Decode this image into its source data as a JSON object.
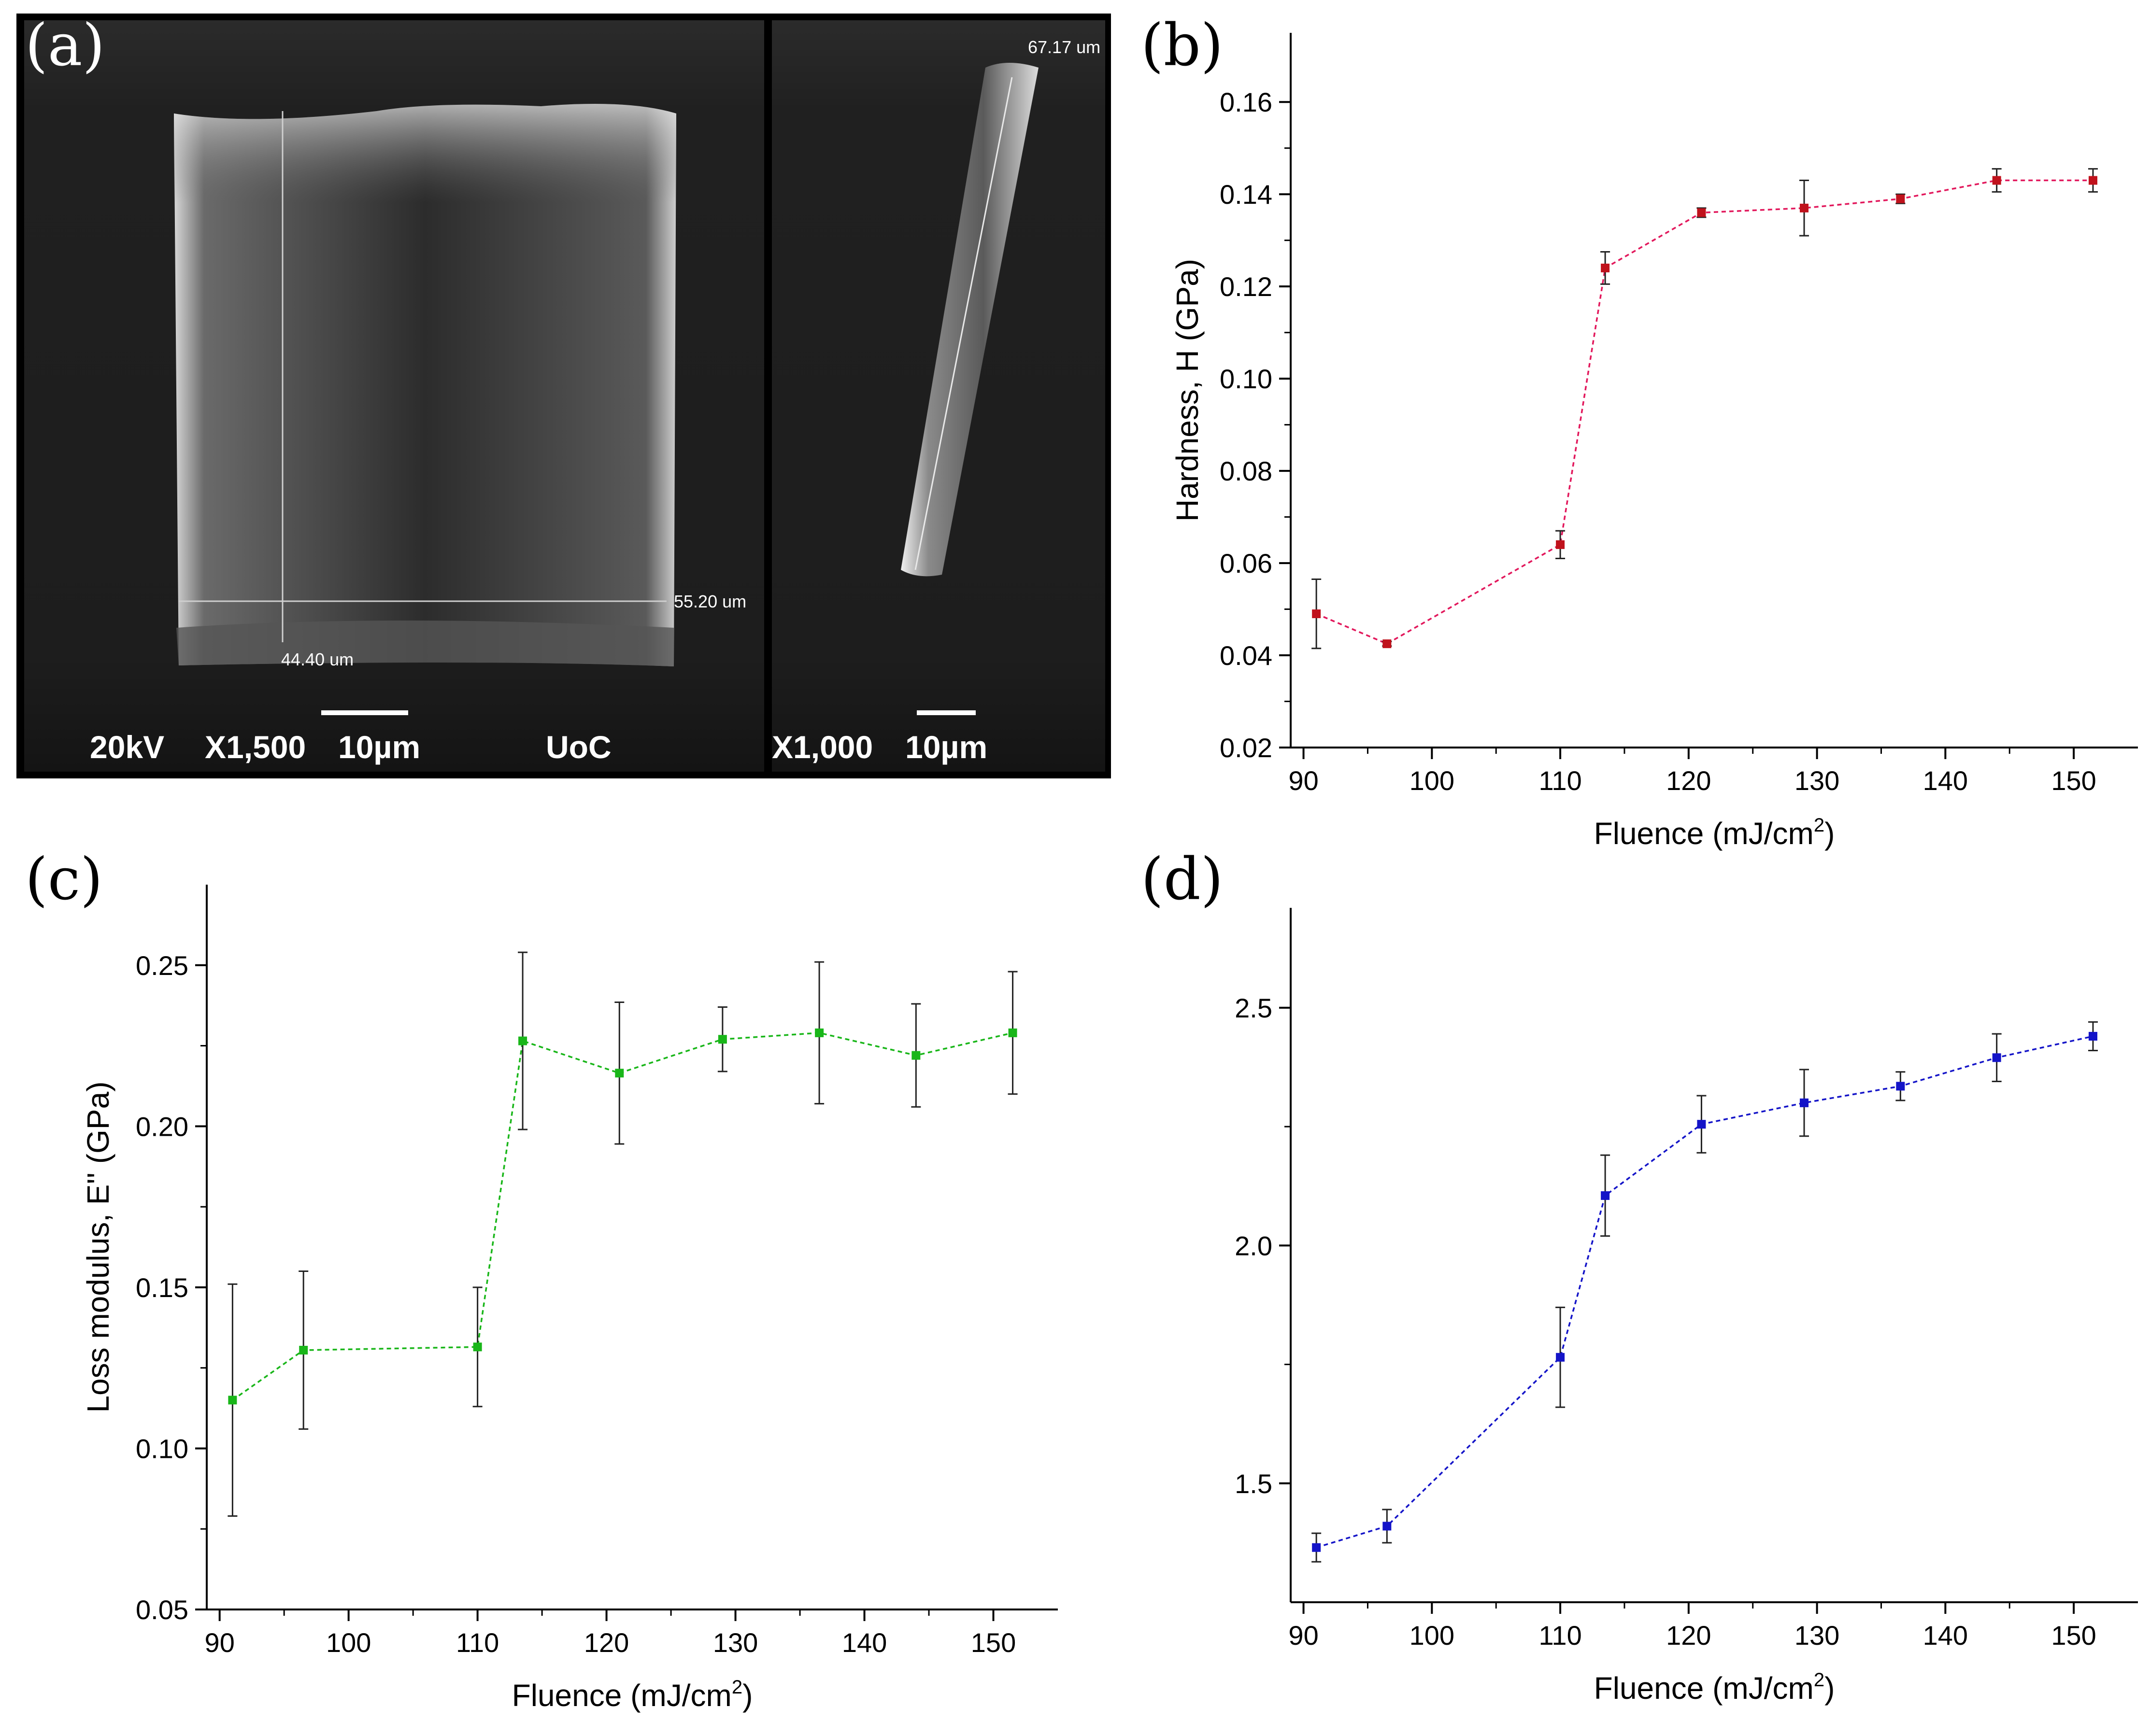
{
  "panel_labels": [
    "(a)",
    "(b)",
    "(c)",
    "(d)"
  ],
  "sem": {
    "left": {
      "kv": "20kV",
      "mag": "X1,500",
      "scale": "10µm",
      "inst": "UoC",
      "meas_w": "44.40 um",
      "meas_h": "55.20 um"
    },
    "right": {
      "mag": "X1,000",
      "scale": "10µm",
      "meas_l": "67.17 um"
    }
  },
  "colors": {
    "b": "#e2185c",
    "b_marker": "#c0121c",
    "c": "#19b619",
    "d": "#1414c8"
  },
  "chart_data": [
    {
      "id": "b",
      "type": "line",
      "ylabel": "Hardness, H (GPa)",
      "xlabel": "Fluence (mJ/cm",
      "xlabel_sup": "2",
      "xlabel_end": ")",
      "xlim": [
        89,
        155
      ],
      "ylim": [
        0.02,
        0.175
      ],
      "xticks": [
        90,
        100,
        110,
        120,
        130,
        140,
        150
      ],
      "xtick_labels": [
        "90",
        "100",
        "110",
        "120",
        "130",
        "140",
        "150"
      ],
      "yticks": [
        0.02,
        0.04,
        0.06,
        0.08,
        0.1,
        0.12,
        0.14,
        0.16
      ],
      "ytick_labels": [
        "0.02",
        "0.04",
        "0.06",
        "0.08",
        "0.10",
        "0.12",
        "0.14",
        "0.16"
      ],
      "x": [
        91,
        96.5,
        110,
        113.5,
        121,
        129,
        136.5,
        144,
        151.5
      ],
      "y": [
        0.049,
        0.0425,
        0.064,
        0.124,
        0.136,
        0.137,
        0.139,
        0.143,
        0.143
      ],
      "err": [
        0.0075,
        0.0005,
        0.003,
        0.0035,
        0.001,
        0.006,
        0.001,
        0.0025,
        0.0025
      ]
    },
    {
      "id": "c",
      "type": "line",
      "ylabel": "Loss modulus, E'' (GPa)",
      "xlabel": "Fluence (mJ/cm",
      "xlabel_sup": "2",
      "xlabel_end": ")",
      "xlim": [
        89,
        155
      ],
      "ylim": [
        0.05,
        0.275
      ],
      "xticks": [
        90,
        100,
        110,
        120,
        130,
        140,
        150
      ],
      "xtick_labels": [
        "90",
        "100",
        "110",
        "120",
        "130",
        "140",
        "150"
      ],
      "yticks": [
        0.05,
        0.1,
        0.15,
        0.2,
        0.25
      ],
      "ytick_labels": [
        "0.05",
        "0.10",
        "0.15",
        "0.20",
        "0.25"
      ],
      "x": [
        91,
        96.5,
        110,
        113.5,
        121,
        129,
        136.5,
        144,
        151.5
      ],
      "y": [
        0.115,
        0.1305,
        0.1315,
        0.2265,
        0.2165,
        0.227,
        0.229,
        0.222,
        0.229
      ],
      "err": [
        0.036,
        0.0245,
        0.0185,
        0.0275,
        0.022,
        0.01,
        0.022,
        0.016,
        0.019
      ]
    },
    {
      "id": "d",
      "type": "line",
      "ylabel": "",
      "xlabel": "Fluence (mJ/cm",
      "xlabel_sup": "2",
      "xlabel_end": ")",
      "xlim": [
        89,
        155
      ],
      "ylim": [
        1.25,
        2.71
      ],
      "xticks": [
        90,
        100,
        110,
        120,
        130,
        140,
        150
      ],
      "xtick_labels": [
        "90",
        "100",
        "110",
        "120",
        "130",
        "140",
        "150"
      ],
      "yticks": [
        1.5,
        2.0,
        2.5
      ],
      "ytick_labels": [
        "1.5",
        "2.0",
        "2.5"
      ],
      "x": [
        91,
        96.5,
        110,
        113.5,
        121,
        129,
        136.5,
        144,
        151.5
      ],
      "y": [
        1.365,
        1.41,
        1.765,
        2.105,
        2.255,
        2.3,
        2.335,
        2.395,
        2.44
      ],
      "err": [
        0.03,
        0.035,
        0.105,
        0.085,
        0.06,
        0.07,
        0.03,
        0.05,
        0.03
      ]
    }
  ]
}
